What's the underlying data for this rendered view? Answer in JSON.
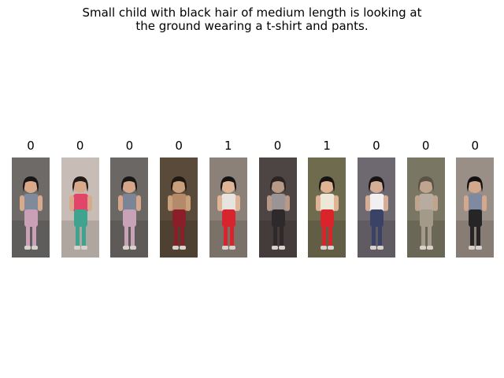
{
  "caption": {
    "line1": "Small child with black hair of medium length is looking at",
    "line2": "the ground wearing a t-shirt and pants."
  },
  "gallery": [
    {
      "label": "0",
      "bg": "#6d6a68",
      "shirt": "#7f8a9a",
      "pants": "#c9a0b5",
      "hair": "#1a1515",
      "skin": "#d8a98a"
    },
    {
      "label": "0",
      "bg": "#c7bdb6",
      "shirt": "#e2456a",
      "pants": "#3fa38f",
      "hair": "#201a18",
      "skin": "#d9a98c"
    },
    {
      "label": "0",
      "bg": "#6a6764",
      "shirt": "#7b8596",
      "pants": "#c8a2b6",
      "hair": "#1a1515",
      "skin": "#d6a68a"
    },
    {
      "label": "0",
      "bg": "#5a4a3a",
      "shirt": "#b58a6a",
      "pants": "#8a1f2a",
      "hair": "#1e1812",
      "skin": "#caa07c"
    },
    {
      "label": "1",
      "bg": "#8b8178",
      "shirt": "#e7e4e0",
      "pants": "#d8242c",
      "hair": "#141212",
      "skin": "#e0b496"
    },
    {
      "label": "0",
      "bg": "#4d4544",
      "shirt": "#9a9496",
      "pants": "#2e2a2b",
      "hair": "#2a2322",
      "skin": "#b89886"
    },
    {
      "label": "1",
      "bg": "#6f6b4f",
      "shirt": "#ece7d7",
      "pants": "#d9242c",
      "hair": "#161212",
      "skin": "#dfb394"
    },
    {
      "label": "0",
      "bg": "#6e6870",
      "shirt": "#f1eff0",
      "pants": "#3a4266",
      "hair": "#161313",
      "skin": "#d6ae96"
    },
    {
      "label": "0",
      "bg": "#7a7664",
      "shirt": "#b8aca0",
      "pants": "#a49a8c",
      "hair": "#5b5246",
      "skin": "#c0a58e"
    },
    {
      "label": "0",
      "bg": "#9a8f86",
      "shirt": "#7f8aa0",
      "pants": "#262424",
      "hair": "#141112",
      "skin": "#d4a88c"
    }
  ]
}
